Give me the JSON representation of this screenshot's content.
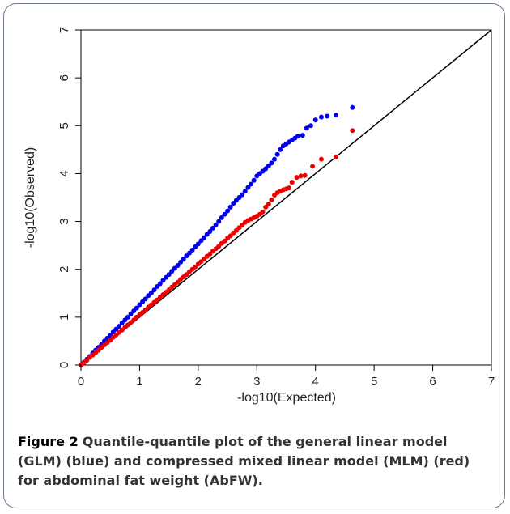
{
  "figure": {
    "label": "Figure 2",
    "caption": "Quantile-quantile plot of the general linear model (GLM) (blue) and compressed mixed linear model (MLM) (red) for abdominal fat weight (AbFW)."
  },
  "chart_data": {
    "type": "scatter",
    "title": "",
    "xlabel": "-log10(Expected)",
    "ylabel": "-log10(Observed)",
    "xlim": [
      0,
      7
    ],
    "ylim": [
      0,
      7
    ],
    "xticks": [
      "0",
      "1",
      "2",
      "3",
      "4",
      "5",
      "6",
      "7"
    ],
    "yticks": [
      "0",
      "1",
      "2",
      "3",
      "4",
      "5",
      "6",
      "7"
    ],
    "reference_line": {
      "from": [
        0,
        0
      ],
      "to": [
        7,
        7
      ],
      "color": "#000000"
    },
    "series": [
      {
        "color": "#0000ee",
        "points": [
          [
            0.0,
            0.0
          ],
          [
            0.05,
            0.06
          ],
          [
            0.1,
            0.12
          ],
          [
            0.15,
            0.18
          ],
          [
            0.2,
            0.25
          ],
          [
            0.25,
            0.31
          ],
          [
            0.3,
            0.37
          ],
          [
            0.35,
            0.43
          ],
          [
            0.4,
            0.5
          ],
          [
            0.45,
            0.56
          ],
          [
            0.5,
            0.62
          ],
          [
            0.55,
            0.69
          ],
          [
            0.6,
            0.75
          ],
          [
            0.65,
            0.81
          ],
          [
            0.7,
            0.88
          ],
          [
            0.75,
            0.94
          ],
          [
            0.8,
            1.0
          ],
          [
            0.85,
            1.07
          ],
          [
            0.9,
            1.13
          ],
          [
            0.95,
            1.19
          ],
          [
            1.0,
            1.26
          ],
          [
            1.05,
            1.32
          ],
          [
            1.1,
            1.38
          ],
          [
            1.15,
            1.45
          ],
          [
            1.2,
            1.51
          ],
          [
            1.25,
            1.57
          ],
          [
            1.3,
            1.64
          ],
          [
            1.35,
            1.7
          ],
          [
            1.4,
            1.77
          ],
          [
            1.45,
            1.83
          ],
          [
            1.5,
            1.89
          ],
          [
            1.55,
            1.96
          ],
          [
            1.6,
            2.02
          ],
          [
            1.65,
            2.08
          ],
          [
            1.7,
            2.15
          ],
          [
            1.75,
            2.21
          ],
          [
            1.8,
            2.28
          ],
          [
            1.85,
            2.34
          ],
          [
            1.9,
            2.4
          ],
          [
            1.95,
            2.47
          ],
          [
            2.0,
            2.53
          ],
          [
            2.05,
            2.6
          ],
          [
            2.1,
            2.66
          ],
          [
            2.15,
            2.73
          ],
          [
            2.2,
            2.79
          ],
          [
            2.25,
            2.86
          ],
          [
            2.3,
            2.93
          ],
          [
            2.35,
            3.0
          ],
          [
            2.4,
            3.08
          ],
          [
            2.45,
            3.15
          ],
          [
            2.5,
            3.22
          ],
          [
            2.55,
            3.3
          ],
          [
            2.6,
            3.38
          ],
          [
            2.65,
            3.44
          ],
          [
            2.7,
            3.5
          ],
          [
            2.75,
            3.56
          ],
          [
            2.8,
            3.63
          ],
          [
            2.85,
            3.71
          ],
          [
            2.9,
            3.78
          ],
          [
            2.95,
            3.86
          ],
          [
            3.0,
            3.95
          ],
          [
            3.05,
            4.0
          ],
          [
            3.1,
            4.05
          ],
          [
            3.15,
            4.1
          ],
          [
            3.2,
            4.16
          ],
          [
            3.25,
            4.22
          ],
          [
            3.3,
            4.3
          ],
          [
            3.35,
            4.4
          ],
          [
            3.4,
            4.5
          ],
          [
            3.45,
            4.58
          ],
          [
            3.5,
            4.62
          ],
          [
            3.55,
            4.66
          ],
          [
            3.6,
            4.7
          ],
          [
            3.65,
            4.74
          ],
          [
            3.7,
            4.78
          ],
          [
            3.78,
            4.8
          ],
          [
            3.85,
            4.95
          ],
          [
            3.92,
            5.0
          ],
          [
            4.0,
            5.12
          ],
          [
            4.1,
            5.18
          ],
          [
            4.2,
            5.2
          ],
          [
            4.35,
            5.22
          ],
          [
            4.63,
            5.38
          ]
        ]
      },
      {
        "color": "#ee0000",
        "points": [
          [
            0.0,
            0.0
          ],
          [
            0.05,
            0.05
          ],
          [
            0.1,
            0.1
          ],
          [
            0.15,
            0.16
          ],
          [
            0.2,
            0.21
          ],
          [
            0.25,
            0.26
          ],
          [
            0.3,
            0.31
          ],
          [
            0.35,
            0.37
          ],
          [
            0.4,
            0.42
          ],
          [
            0.45,
            0.47
          ],
          [
            0.5,
            0.52
          ],
          [
            0.55,
            0.58
          ],
          [
            0.6,
            0.63
          ],
          [
            0.65,
            0.68
          ],
          [
            0.7,
            0.73
          ],
          [
            0.75,
            0.79
          ],
          [
            0.8,
            0.84
          ],
          [
            0.85,
            0.89
          ],
          [
            0.9,
            0.94
          ],
          [
            0.95,
            1.0
          ],
          [
            1.0,
            1.05
          ],
          [
            1.05,
            1.1
          ],
          [
            1.1,
            1.15
          ],
          [
            1.15,
            1.21
          ],
          [
            1.2,
            1.26
          ],
          [
            1.25,
            1.31
          ],
          [
            1.3,
            1.36
          ],
          [
            1.35,
            1.42
          ],
          [
            1.4,
            1.47
          ],
          [
            1.45,
            1.52
          ],
          [
            1.5,
            1.57
          ],
          [
            1.55,
            1.63
          ],
          [
            1.6,
            1.68
          ],
          [
            1.65,
            1.73
          ],
          [
            1.7,
            1.79
          ],
          [
            1.75,
            1.84
          ],
          [
            1.8,
            1.89
          ],
          [
            1.85,
            1.95
          ],
          [
            1.9,
            2.0
          ],
          [
            1.95,
            2.05
          ],
          [
            2.0,
            2.11
          ],
          [
            2.05,
            2.16
          ],
          [
            2.1,
            2.21
          ],
          [
            2.15,
            2.27
          ],
          [
            2.2,
            2.32
          ],
          [
            2.25,
            2.38
          ],
          [
            2.3,
            2.43
          ],
          [
            2.35,
            2.48
          ],
          [
            2.4,
            2.54
          ],
          [
            2.45,
            2.59
          ],
          [
            2.5,
            2.65
          ],
          [
            2.55,
            2.7
          ],
          [
            2.6,
            2.76
          ],
          [
            2.65,
            2.81
          ],
          [
            2.7,
            2.87
          ],
          [
            2.75,
            2.92
          ],
          [
            2.8,
            2.98
          ],
          [
            2.85,
            3.02
          ],
          [
            2.9,
            3.05
          ],
          [
            2.95,
            3.08
          ],
          [
            3.0,
            3.11
          ],
          [
            3.05,
            3.15
          ],
          [
            3.1,
            3.2
          ],
          [
            3.15,
            3.3
          ],
          [
            3.2,
            3.36
          ],
          [
            3.25,
            3.45
          ],
          [
            3.3,
            3.55
          ],
          [
            3.35,
            3.6
          ],
          [
            3.4,
            3.63
          ],
          [
            3.45,
            3.66
          ],
          [
            3.5,
            3.68
          ],
          [
            3.55,
            3.7
          ],
          [
            3.6,
            3.82
          ],
          [
            3.68,
            3.92
          ],
          [
            3.75,
            3.95
          ],
          [
            3.82,
            3.96
          ],
          [
            3.95,
            4.15
          ],
          [
            4.1,
            4.3
          ],
          [
            4.35,
            4.35
          ],
          [
            4.63,
            4.9
          ]
        ]
      }
    ]
  }
}
